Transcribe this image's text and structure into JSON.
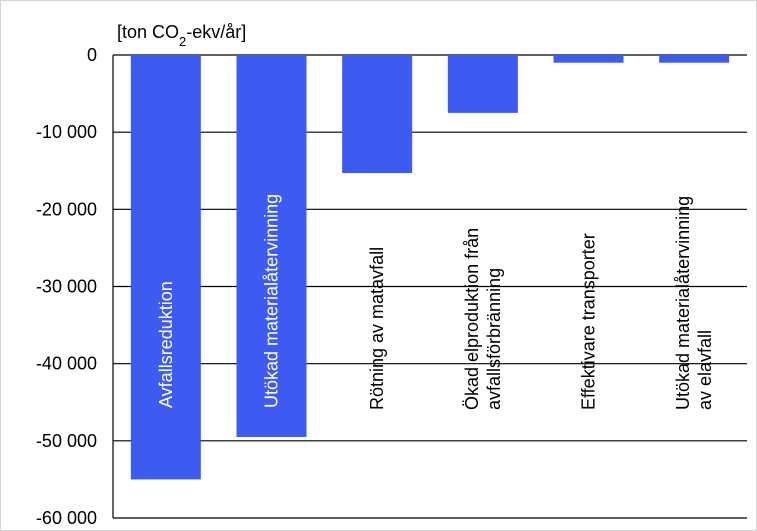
{
  "chart_data": {
    "type": "bar",
    "unit_label": "[ton CO2-ekv/år]",
    "unit_parts": {
      "before": "[ton CO",
      "subscript": "2",
      "after": "-ekv/år]"
    },
    "categories": [
      [
        "Avfallsreduktion"
      ],
      [
        "Utökad materialåtervinning"
      ],
      [
        "Rötning av matavfall"
      ],
      [
        "Ökad elproduktion från",
        "avfallsförbränning"
      ],
      [
        "Effektivare transporter"
      ],
      [
        "Utökad materialåtervinning",
        "av elavfall"
      ]
    ],
    "values": [
      -55000,
      -49500,
      -15300,
      -7500,
      -1000,
      -1000
    ],
    "ylim": [
      -60000,
      0
    ],
    "yticks": [
      0,
      -10000,
      -20000,
      -30000,
      -40000,
      -50000,
      -60000
    ],
    "ytick_labels": [
      "0",
      "-10 000",
      "-20 000",
      "-30 000",
      "-40 000",
      "-50 000",
      "-60 000"
    ],
    "grid": true,
    "bar_color": "#3d5af1",
    "label_color_inside": "#ffffff",
    "label_color_outside": "#000000"
  }
}
